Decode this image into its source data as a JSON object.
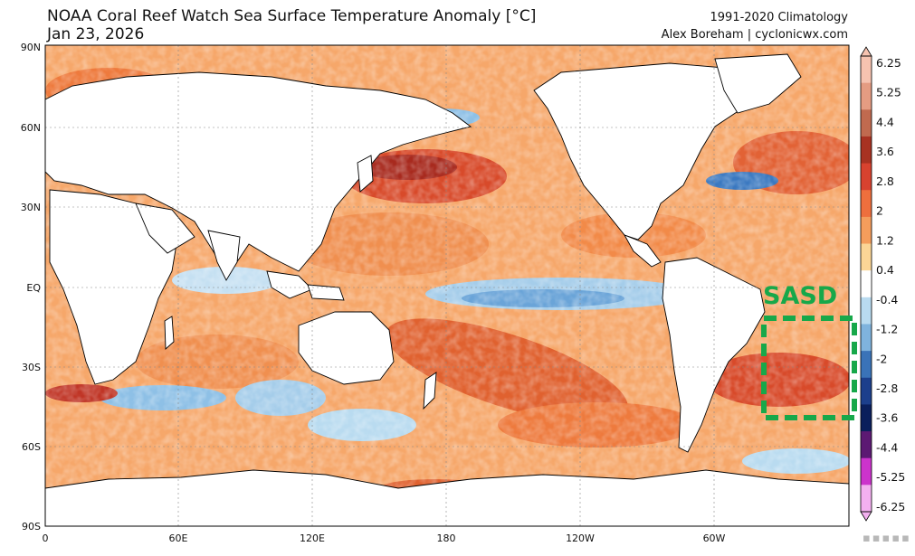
{
  "header": {
    "title": "NOAA Coral Reef Watch Sea Surface Temperature Anomaly [°C]",
    "date": "Jan 23, 2026",
    "climatology": "1991-2020 Climatology",
    "credit": "Alex Boreham | cyclonicwx.com"
  },
  "map": {
    "lat_labels": [
      "90N",
      "60N",
      "30N",
      "EQ",
      "30S",
      "60S",
      "90S"
    ],
    "lon_labels": [
      "0",
      "60E",
      "120E",
      "180",
      "120W",
      "60W"
    ],
    "annotation": {
      "label": "SASD",
      "color": "#17a84a"
    },
    "colors": {
      "warm": "#e8743a",
      "hot": "#c0392b",
      "cool": "#8fc3e8",
      "cold": "#3a78c0",
      "land": "#ffffff",
      "coast": "#000000"
    }
  },
  "colorbar": {
    "labels": [
      "6.25",
      "5.25",
      "4.4",
      "3.6",
      "2.8",
      "2",
      "1.2",
      "0.4",
      "-0.4",
      "-1.2",
      "-2",
      "-2.8",
      "-3.6",
      "-4.4",
      "-5.25",
      "-6.25"
    ],
    "colors": [
      "#f6c3b0",
      "#e59c82",
      "#c06a4f",
      "#a83222",
      "#d8422f",
      "#ee6f3d",
      "#f49d5c",
      "#fbd596",
      "#ffffff",
      "#b9dbf0",
      "#7fb3dd",
      "#3a73b8",
      "#1c3f8c",
      "#0a1f5c",
      "#5c1973",
      "#cc33cc",
      "#f3b0f0"
    ]
  },
  "watermark": "▪▪▪▪▪"
}
